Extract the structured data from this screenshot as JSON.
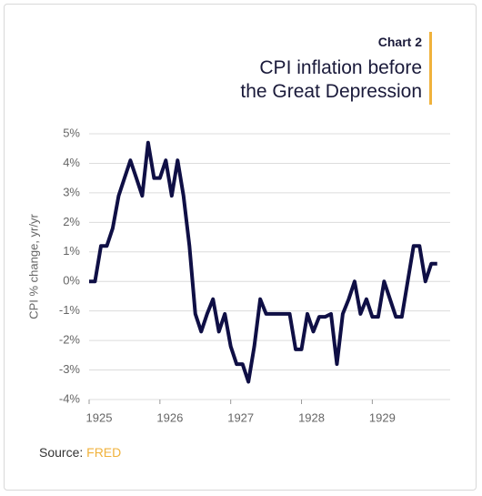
{
  "kicker": "Chart 2",
  "chart_data": {
    "type": "line",
    "title": "CPI inflation before the Great Depression",
    "y_label": "CPI % change, yr/yr",
    "x": [
      1925,
      1925.083,
      1925.167,
      1925.25,
      1925.333,
      1925.417,
      1925.5,
      1925.583,
      1925.667,
      1925.75,
      1925.833,
      1925.917,
      1926,
      1926.083,
      1926.167,
      1926.25,
      1926.333,
      1926.417,
      1926.5,
      1926.583,
      1926.667,
      1926.75,
      1926.833,
      1926.917,
      1927,
      1927.083,
      1927.167,
      1927.25,
      1927.333,
      1927.417,
      1927.5,
      1927.583,
      1927.667,
      1927.75,
      1927.833,
      1927.917,
      1928,
      1928.083,
      1928.167,
      1928.25,
      1928.333,
      1928.417,
      1928.5,
      1928.583,
      1928.667,
      1928.75,
      1928.833,
      1928.917,
      1929,
      1929.083,
      1929.167,
      1929.25,
      1929.333,
      1929.417,
      1929.5,
      1929.583,
      1929.667,
      1929.75,
      1929.833,
      1929.917
    ],
    "series": [
      {
        "name": "CPI",
        "color": "#0f0f45",
        "values": [
          0,
          0,
          1.2,
          1.2,
          1.8,
          2.9,
          3.5,
          4.1,
          3.5,
          2.9,
          4.7,
          3.5,
          3.5,
          4.1,
          2.9,
          4.1,
          2.9,
          1.2,
          -1.1,
          -1.7,
          -1.1,
          -0.6,
          -1.7,
          -1.1,
          -2.2,
          -2.8,
          -2.8,
          -3.4,
          -2.2,
          -0.6,
          -1.1,
          -1.1,
          -1.1,
          -1.1,
          -1.1,
          -2.3,
          -2.3,
          -1.1,
          -1.7,
          -1.2,
          -1.2,
          -1.1,
          -2.8,
          -1.1,
          -0.6,
          0,
          -1.1,
          -0.6,
          -1.2,
          -1.2,
          0,
          -0.6,
          -1.2,
          -1.2,
          0,
          1.2,
          1.2,
          0,
          0.6,
          0.6
        ]
      }
    ],
    "xlim": [
      1925,
      1930.1
    ],
    "xticks": [
      1925,
      1926,
      1927,
      1928,
      1929
    ],
    "ylim": [
      -4,
      5
    ],
    "yticks": [
      {
        "value": -4,
        "label": "-4%"
      },
      {
        "value": -3,
        "label": "-3%"
      },
      {
        "value": -2,
        "label": "-2%"
      },
      {
        "value": -1,
        "label": "-1%"
      },
      {
        "value": 0,
        "label": "0%"
      },
      {
        "value": 1,
        "label": "1%"
      },
      {
        "value": 2,
        "label": "2%"
      },
      {
        "value": 3,
        "label": "3%"
      },
      {
        "value": 4,
        "label": "4%"
      },
      {
        "value": 5,
        "label": "5%"
      }
    ],
    "grid": true
  },
  "source_label": "Source:",
  "source": "FRED"
}
